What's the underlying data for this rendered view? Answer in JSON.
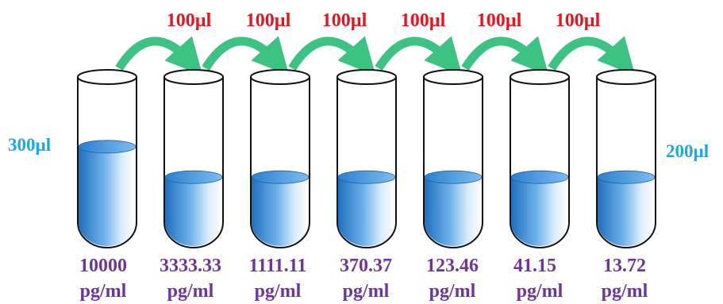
{
  "colors": {
    "transfer_text": "#e8141e",
    "volume_text": "#1aa9e0",
    "concentration_text": "#6f3598",
    "arrow": "#3cc382",
    "liquid": "#2f86d3",
    "tube_outline": "#111111"
  },
  "transfers": [
    {
      "label": "100µl"
    },
    {
      "label": "100µl"
    },
    {
      "label": "100µl"
    },
    {
      "label": "100µl"
    },
    {
      "label": "100µl"
    },
    {
      "label": "100µl"
    }
  ],
  "volumes": {
    "left": "300µl",
    "right": "200µl"
  },
  "tubes": [
    {
      "value": "10000",
      "unit": "pg/ml",
      "fill_fraction": 0.6
    },
    {
      "value": "3333.33",
      "unit": "pg/ml",
      "fill_fraction": 0.4
    },
    {
      "value": "1111.11",
      "unit": "pg/ml",
      "fill_fraction": 0.4
    },
    {
      "value": "370.37",
      "unit": "pg/ml",
      "fill_fraction": 0.4
    },
    {
      "value": "123.46",
      "unit": "pg/ml",
      "fill_fraction": 0.4
    },
    {
      "value": "41.15",
      "unit": "pg/ml",
      "fill_fraction": 0.4
    },
    {
      "value": "13.72",
      "unit": "pg/ml",
      "fill_fraction": 0.4
    }
  ]
}
